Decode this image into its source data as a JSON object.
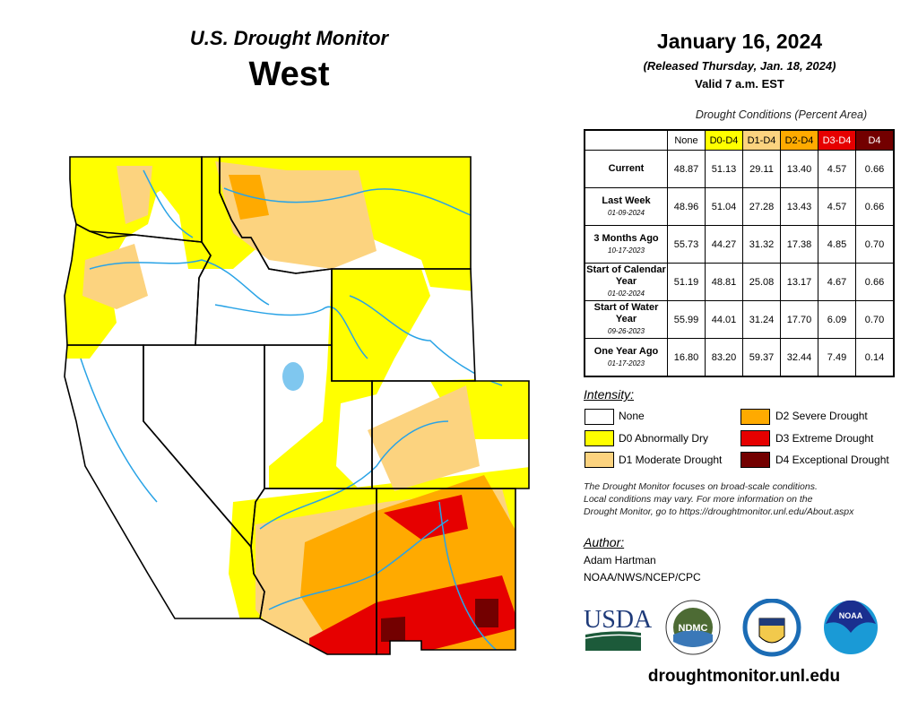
{
  "header": {
    "title": "U.S. Drought Monitor",
    "region": "West",
    "date": "January 16, 2024",
    "released": "(Released Thursday, Jan. 18, 2024)",
    "valid": "Valid 7 a.m. EST"
  },
  "table": {
    "title": "Drought Conditions (Percent Area)",
    "columns": [
      {
        "label": "None",
        "bg": "#ffffff",
        "fg": "#000000"
      },
      {
        "label": "D0-D4",
        "bg": "#ffff00",
        "fg": "#000000"
      },
      {
        "label": "D1-D4",
        "bg": "#fcd37f",
        "fg": "#000000"
      },
      {
        "label": "D2-D4",
        "bg": "#ffaa00",
        "fg": "#000000"
      },
      {
        "label": "D3-D4",
        "bg": "#e60000",
        "fg": "#ffffff"
      },
      {
        "label": "D4",
        "bg": "#730000",
        "fg": "#ffffff"
      }
    ],
    "rows": [
      {
        "label": "Current",
        "date": "",
        "values": [
          "48.87",
          "51.13",
          "29.11",
          "13.40",
          "4.57",
          "0.66"
        ]
      },
      {
        "label": "Last Week",
        "date": "01-09-2024",
        "values": [
          "48.96",
          "51.04",
          "27.28",
          "13.43",
          "4.57",
          "0.66"
        ]
      },
      {
        "label": "3 Months Ago",
        "date": "10-17-2023",
        "values": [
          "55.73",
          "44.27",
          "31.32",
          "17.38",
          "4.85",
          "0.70"
        ]
      },
      {
        "label": "Start of Calendar Year",
        "date": "01-02-2024",
        "values": [
          "51.19",
          "48.81",
          "25.08",
          "13.17",
          "4.67",
          "0.66"
        ]
      },
      {
        "label": "Start of Water Year",
        "date": "09-26-2023",
        "values": [
          "55.99",
          "44.01",
          "31.24",
          "17.70",
          "6.09",
          "0.70"
        ]
      },
      {
        "label": "One Year Ago",
        "date": "01-17-2023",
        "values": [
          "16.80",
          "83.20",
          "59.37",
          "32.44",
          "7.49",
          "0.14"
        ]
      }
    ]
  },
  "legend": {
    "title": "Intensity:",
    "items": [
      {
        "label": "None",
        "color": "#ffffff"
      },
      {
        "label": "D0 Abnormally Dry",
        "color": "#ffff00"
      },
      {
        "label": "D1 Moderate Drought",
        "color": "#fcd37f"
      },
      {
        "label": "D2 Severe Drought",
        "color": "#ffaa00"
      },
      {
        "label": "D3 Extreme Drought",
        "color": "#e60000"
      },
      {
        "label": "D4 Exceptional Drought",
        "color": "#730000"
      }
    ]
  },
  "disclaimer": [
    "The Drought Monitor focuses on broad-scale conditions.",
    "Local conditions may vary. For more information on the",
    "Drought Monitor, go to https://droughtmonitor.unl.edu/About.aspx"
  ],
  "author": {
    "heading": "Author:",
    "name": "Adam Hartman",
    "org": "NOAA/NWS/NCEP/CPC"
  },
  "logos": {
    "usda": "USDA",
    "ndmc": "NDMC",
    "noaa": "NOAA",
    "commerce": "Department of Commerce seal"
  },
  "url": "droughtmonitor.unl.edu"
}
